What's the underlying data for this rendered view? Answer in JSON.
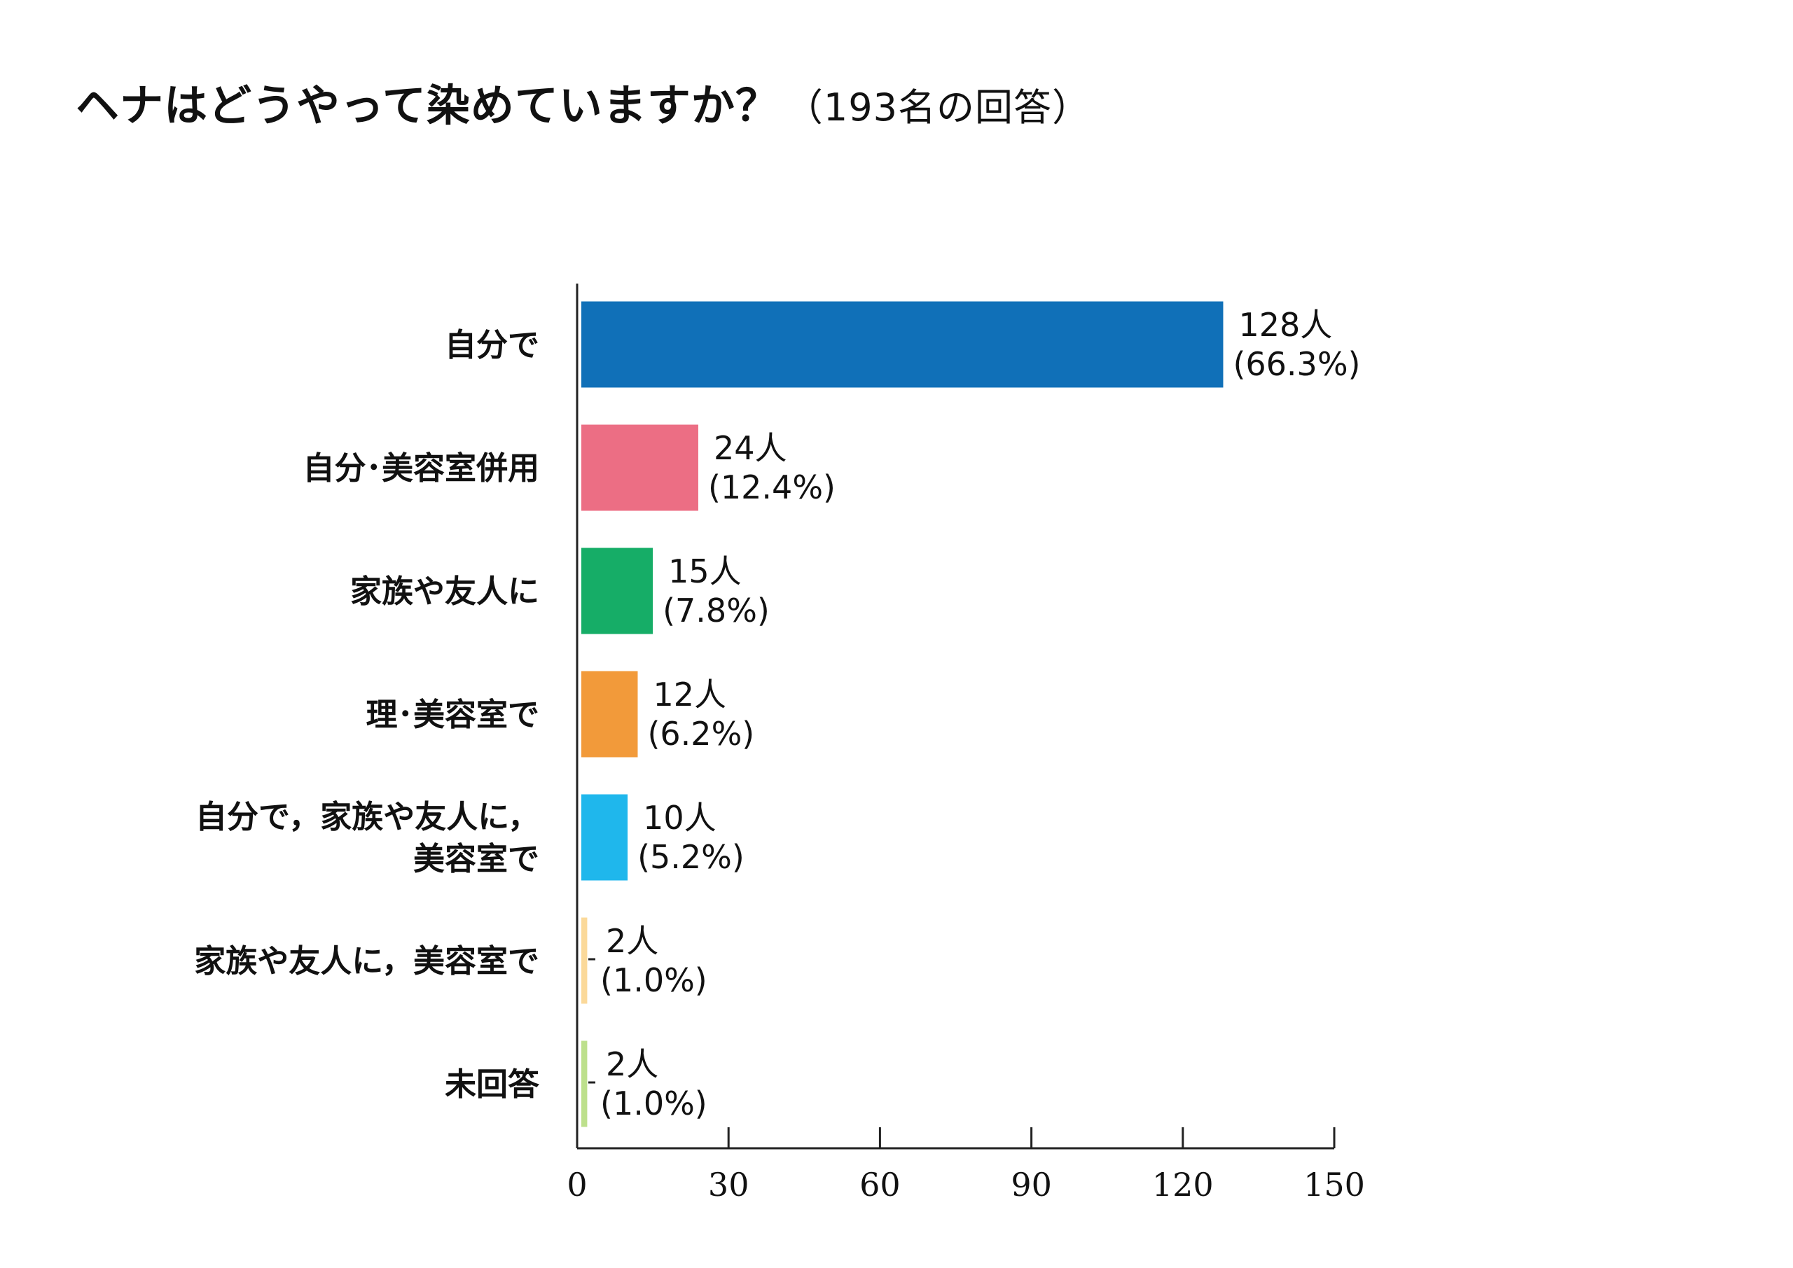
{
  "header": {
    "title": "ヘナはどうやって染めていますか？",
    "subtitle": "（193名の回答）"
  },
  "chart_data": {
    "type": "bar",
    "orientation": "horizontal",
    "title": "ヘナはどうやって染めていますか？",
    "subtitle": "（193名の回答）",
    "categories": [
      [
        "自分で"
      ],
      [
        "自分･美容室併用"
      ],
      [
        "家族や友人に"
      ],
      [
        "理･美容室で"
      ],
      [
        "自分で，家族や友人に，",
        "美容室で"
      ],
      [
        "家族や友人に，美容室で"
      ],
      [
        "未回答"
      ]
    ],
    "values": [
      128,
      24,
      15,
      12,
      10,
      2,
      2
    ],
    "percent_labels": [
      "(66.3%)",
      "(12.4%)",
      "(7.8%)",
      "(6.2%)",
      "(5.2%)",
      "(1.0%)",
      "(1.0%)"
    ],
    "count_labels": [
      "128人",
      "24人",
      "15人",
      "12人",
      "10人",
      "2人",
      "2人"
    ],
    "colors": [
      "#1070b8",
      "#ec6e84",
      "#16ad67",
      "#f29a3a",
      "#1fb7ec",
      "#fbd99a",
      "#bde08c"
    ],
    "xlim": [
      0,
      150
    ],
    "xticks": [
      0,
      30,
      60,
      90,
      120,
      150
    ],
    "grid": false,
    "legend": "none"
  }
}
